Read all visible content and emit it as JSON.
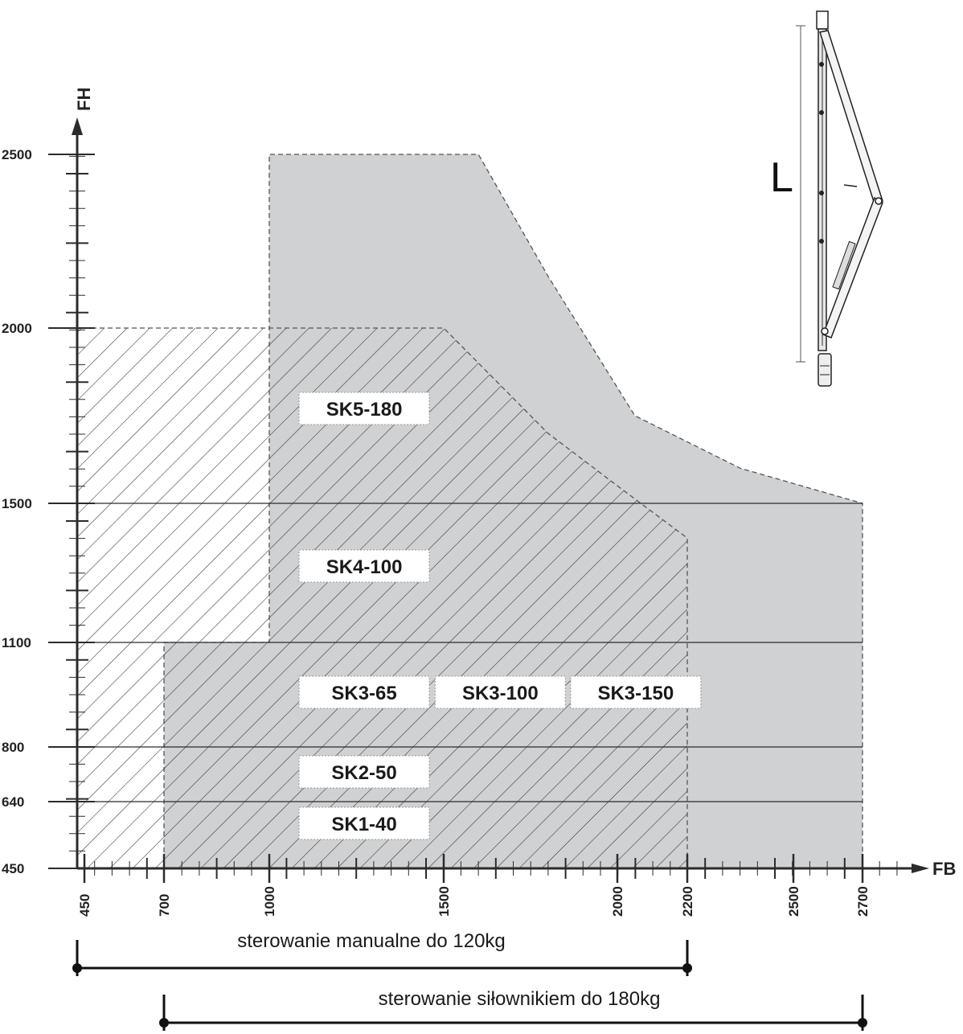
{
  "chart_data": {
    "type": "area",
    "xlabel": "FB",
    "ylabel": "FH",
    "x_ticks": [
      450,
      700,
      1000,
      1500,
      2000,
      2200,
      2500,
      2700
    ],
    "y_ticks": [
      450,
      640,
      800,
      1100,
      1500,
      2000,
      2500
    ],
    "xlim": [
      450,
      2700
    ],
    "ylim": [
      450,
      2500
    ],
    "grid": false,
    "regions": [
      {
        "name": "sterowanie siłownikiem do 180kg",
        "fill": "grey",
        "outline": [
          [
            700,
            450
          ],
          [
            700,
            1100
          ],
          [
            1000,
            1100
          ],
          [
            1000,
            2500
          ],
          [
            1600,
            2500
          ],
          [
            1800,
            2150
          ],
          [
            2050,
            1750
          ],
          [
            2350,
            1600
          ],
          [
            2700,
            1500
          ],
          [
            2700,
            450
          ]
        ]
      },
      {
        "name": "sterowanie manualne do 120kg",
        "fill": "hatched",
        "outline": [
          [
            450,
            450
          ],
          [
            450,
            2000
          ],
          [
            1500,
            2000
          ],
          [
            1600,
            1900
          ],
          [
            1800,
            1700
          ],
          [
            2000,
            1550
          ],
          [
            2200,
            1400
          ],
          [
            2200,
            450
          ]
        ]
      }
    ],
    "bands": [
      {
        "y_from": 450,
        "y_to": 640,
        "label": "SK1-40"
      },
      {
        "y_from": 640,
        "y_to": 800,
        "label": "SK2-50"
      },
      {
        "y_from": 800,
        "y_to": 1100,
        "labels": [
          "SK3-65",
          "SK3-100",
          "SK3-150"
        ]
      },
      {
        "y_from": 1100,
        "y_to": 1500,
        "label": "SK4-100"
      },
      {
        "y_from": 1500,
        "y_to": 2500,
        "label": "SK5-180"
      }
    ],
    "ranges": [
      {
        "label": "sterowanie manualne do 120kg",
        "x_from": 450,
        "x_to": 2200
      },
      {
        "label": "sterowanie siłownikiem do 180kg",
        "x_from": 700,
        "x_to": 2700
      }
    ],
    "colors": {
      "grey_region": "#d0d1d3",
      "lines": "#2b2b2b"
    }
  },
  "illustration": {
    "icon": "scissor-stay-icon",
    "dimension_label": "L"
  }
}
